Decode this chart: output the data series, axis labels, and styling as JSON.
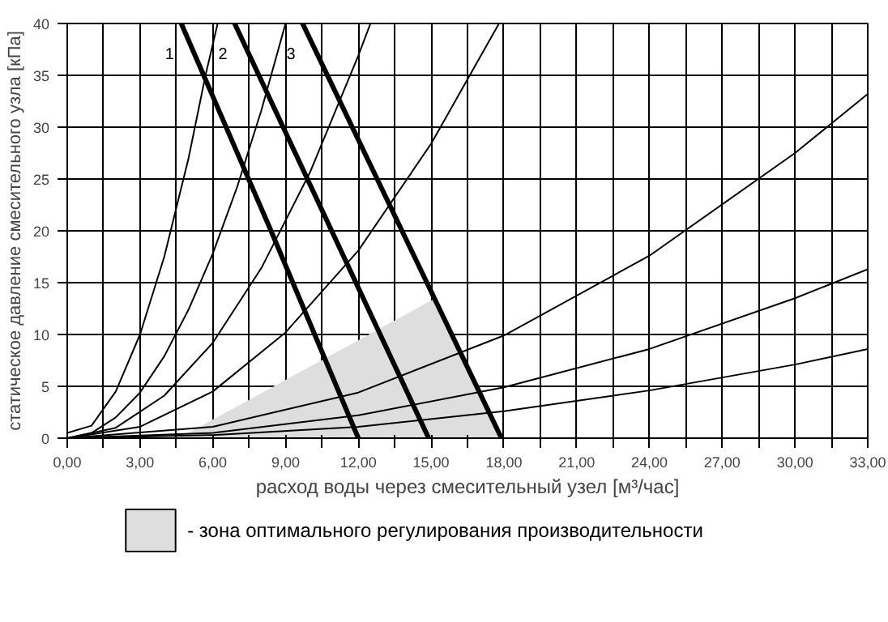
{
  "chart_data": {
    "type": "line",
    "xlabel": "расход воды через смесительный узел [м³/час]",
    "ylabel": "статическое давление смесительного узла [кПа]",
    "xlim": [
      0,
      33
    ],
    "ylim": [
      0,
      40
    ],
    "xticks": [
      {
        "value": 0,
        "label": "0,00"
      },
      {
        "value": 1.5,
        "label": null
      },
      {
        "value": 3,
        "label": "3,00"
      },
      {
        "value": 4.5,
        "label": null
      },
      {
        "value": 6,
        "label": "6,00"
      },
      {
        "value": 7.5,
        "label": null
      },
      {
        "value": 9,
        "label": "9,00"
      },
      {
        "value": 10.5,
        "label": null
      },
      {
        "value": 12,
        "label": "12,00"
      },
      {
        "value": 13.5,
        "label": null
      },
      {
        "value": 15,
        "label": "15,00"
      },
      {
        "value": 16.5,
        "label": null
      },
      {
        "value": 18,
        "label": "18,00"
      },
      {
        "value": 19.5,
        "label": null
      },
      {
        "value": 21,
        "label": "21,00"
      },
      {
        "value": 22.5,
        "label": null
      },
      {
        "value": 24,
        "label": "24,00"
      },
      {
        "value": 25.5,
        "label": null
      },
      {
        "value": 27,
        "label": "27,00"
      },
      {
        "value": 28.5,
        "label": null
      },
      {
        "value": 30,
        "label": "30,00"
      },
      {
        "value": 31.5,
        "label": null
      },
      {
        "value": 33,
        "label": "33,00"
      }
    ],
    "yticks": [
      0,
      5,
      10,
      15,
      20,
      25,
      30,
      35,
      40
    ],
    "grid": true,
    "legend": "bottom",
    "series": [
      {
        "type": "area",
        "name": "- зона оптимального регулирования производительности",
        "color": "#dedede",
        "x": [
          4.6,
          15.1,
          17.9
        ],
        "values": [
          0,
          13.4,
          0
        ]
      },
      {
        "color": "#000000",
        "x": [
          0,
          1,
          2,
          3,
          4,
          5,
          5.7,
          6.2
        ],
        "values": [
          0.5,
          1.2,
          4.5,
          10,
          17.5,
          27,
          35,
          40
        ]
      },
      {
        "color": "#000000",
        "x": [
          0,
          1,
          2,
          3,
          4,
          5,
          6,
          7,
          8,
          9
        ],
        "values": [
          0,
          0.5,
          2,
          4.4,
          7.9,
          12.4,
          17.8,
          24.2,
          31.6,
          40
        ]
      },
      {
        "color": "#000000",
        "x": [
          0,
          2,
          4,
          6,
          8,
          10,
          12,
          12.5
        ],
        "values": [
          0,
          1,
          4.1,
          9.2,
          16.4,
          25.6,
          36.9,
          40
        ]
      },
      {
        "color": "#000000",
        "x": [
          0,
          3,
          6,
          9,
          12,
          15,
          17.8
        ],
        "values": [
          0,
          1.1,
          4.5,
          10.2,
          18.1,
          28.4,
          40
        ]
      },
      {
        "color": "#000000",
        "x": [
          0,
          6,
          12,
          18,
          24,
          30,
          33
        ],
        "values": [
          0,
          1.1,
          4.4,
          9.9,
          17.6,
          27.5,
          33.2
        ]
      },
      {
        "color": "#000000",
        "x": [
          0,
          6,
          12,
          18,
          24,
          30,
          33
        ],
        "values": [
          0,
          0.5,
          2.2,
          4.9,
          8.6,
          13.5,
          16.3
        ]
      },
      {
        "color": "#000000",
        "x": [
          0,
          6,
          12,
          18,
          24,
          30,
          33
        ],
        "values": [
          0,
          0.3,
          1.1,
          2.6,
          4.6,
          7.1,
          8.6
        ]
      },
      {
        "name": "1",
        "color": "#000000",
        "x": [
          4.7,
          8.4,
          12.0
        ],
        "values": [
          40,
          20,
          0
        ]
      },
      {
        "name": "2",
        "color": "#000000",
        "x": [
          6.9,
          10.9,
          14.9
        ],
        "values": [
          40,
          20,
          0
        ]
      },
      {
        "name": "3",
        "color": "#000000",
        "x": [
          9.7,
          13.8,
          17.9
        ],
        "values": [
          40,
          20,
          0
        ]
      }
    ]
  }
}
